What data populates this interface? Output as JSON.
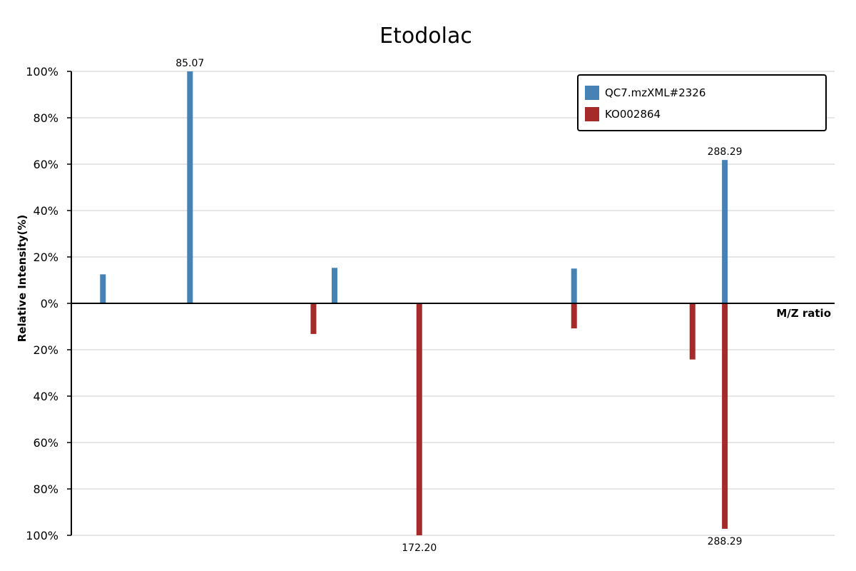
{
  "chart_data": {
    "type": "mirrored-bar",
    "title": "Etodolac",
    "xlabel": "M/Z ratio",
    "ylabel": "Relative Intensity(%)",
    "y_ticks_top": [
      "100%",
      "80%",
      "60%",
      "40%",
      "20%",
      "0%"
    ],
    "y_ticks_bottom": [
      "20%",
      "40%",
      "60%",
      "80%",
      "100%"
    ],
    "grid": true,
    "legend_position": "top-right",
    "series": [
      {
        "name": "QC7.mzXML#2326",
        "color": "#4682b4",
        "direction": "up",
        "peaks": [
          {
            "mz": 52,
            "intensity": 12.5,
            "label": ""
          },
          {
            "mz": 85.07,
            "intensity": 100,
            "label": "85.07"
          },
          {
            "mz": 140,
            "intensity": 15.3,
            "label": ""
          },
          {
            "mz": 231,
            "intensity": 15,
            "label": ""
          },
          {
            "mz": 288.29,
            "intensity": 61.8,
            "label": "288.29"
          }
        ]
      },
      {
        "name": "KO002864",
        "color": "#a52a2a",
        "direction": "down",
        "peaks": [
          {
            "mz": 132,
            "intensity": 13.2,
            "label": ""
          },
          {
            "mz": 172.2,
            "intensity": 100,
            "label": "172.20"
          },
          {
            "mz": 231,
            "intensity": 10.8,
            "label": ""
          },
          {
            "mz": 276,
            "intensity": 24.2,
            "label": ""
          },
          {
            "mz": 288.29,
            "intensity": 97.2,
            "label": "288.29"
          }
        ]
      }
    ]
  }
}
